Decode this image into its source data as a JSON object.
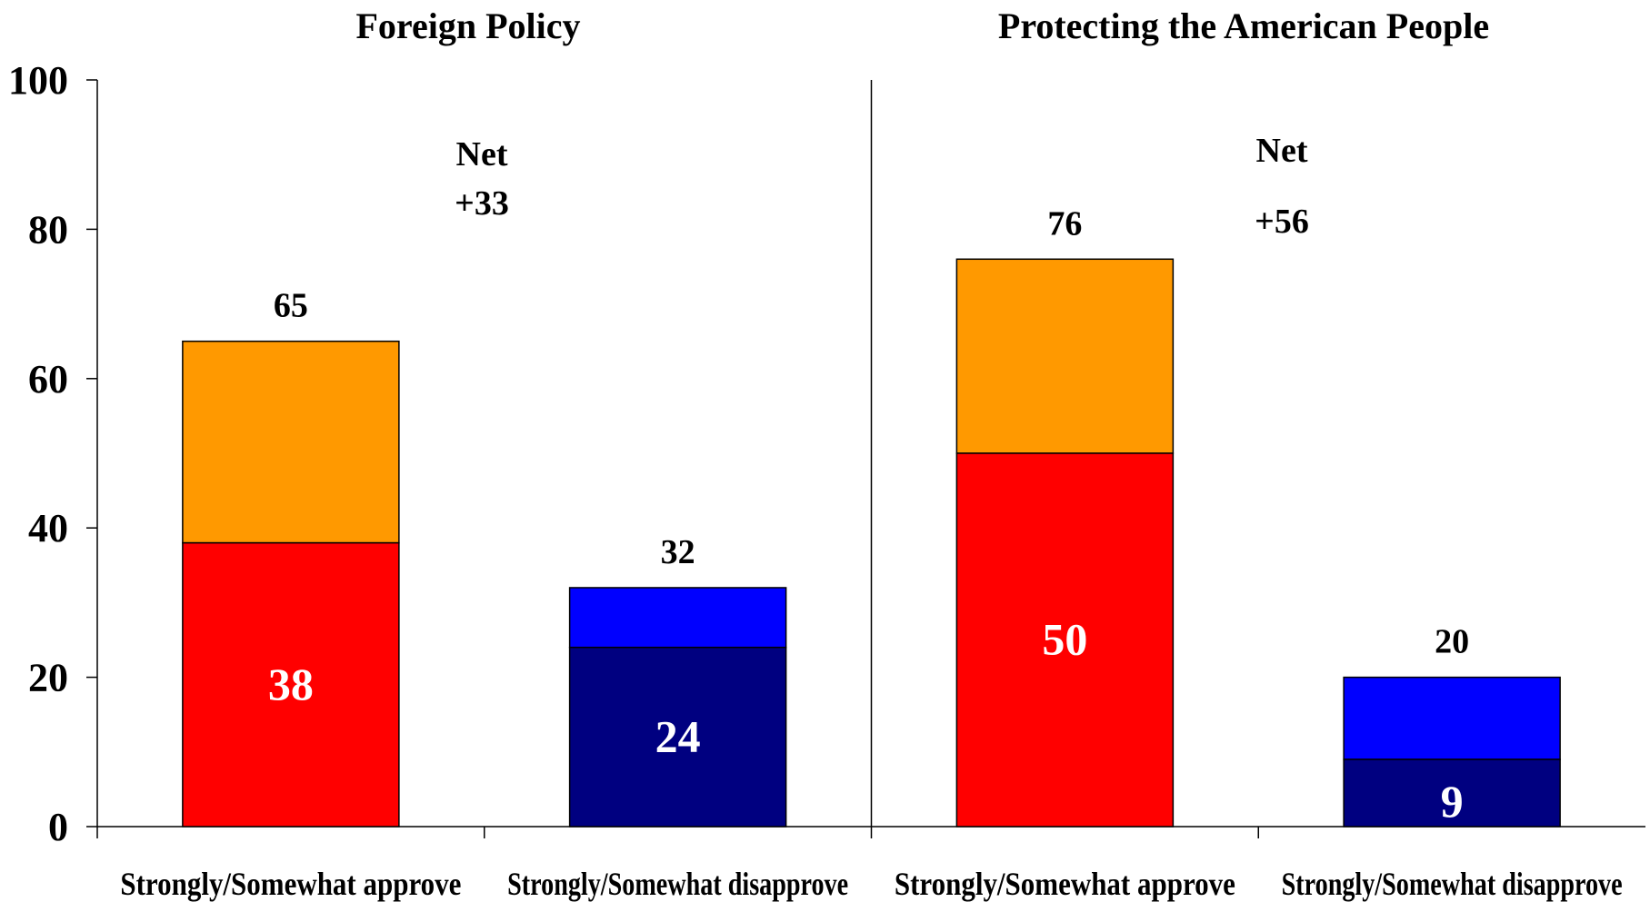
{
  "chart_data": {
    "type": "bar",
    "stacked": true,
    "ylim": [
      0,
      100
    ],
    "yticks": [
      0,
      20,
      40,
      60,
      80,
      100
    ],
    "grid": false,
    "legend": "none",
    "colors": {
      "approve_strong": "#FF0000",
      "approve_somewhat": "#FF9900",
      "disapprove_strong": "#000080",
      "disapprove_somewhat": "#0000FF"
    },
    "panels": [
      {
        "title": "Foreign Policy",
        "net_label": "Net",
        "net_value": "+33",
        "bars": [
          {
            "category": "Strongly/Somewhat approve",
            "strong": 38,
            "total": 65,
            "kind": "approve"
          },
          {
            "category": "Strongly/Somewhat disapprove",
            "strong": 24,
            "total": 32,
            "kind": "disapprove"
          }
        ]
      },
      {
        "title": "Protecting the American People",
        "net_label": "Net",
        "net_value": "+56",
        "bars": [
          {
            "category": "Strongly/Somewhat approve",
            "strong": 50,
            "total": 76,
            "kind": "approve"
          },
          {
            "category": "Strongly/Somewhat disapprove",
            "strong": 9,
            "total": 20,
            "kind": "disapprove"
          }
        ]
      }
    ]
  }
}
